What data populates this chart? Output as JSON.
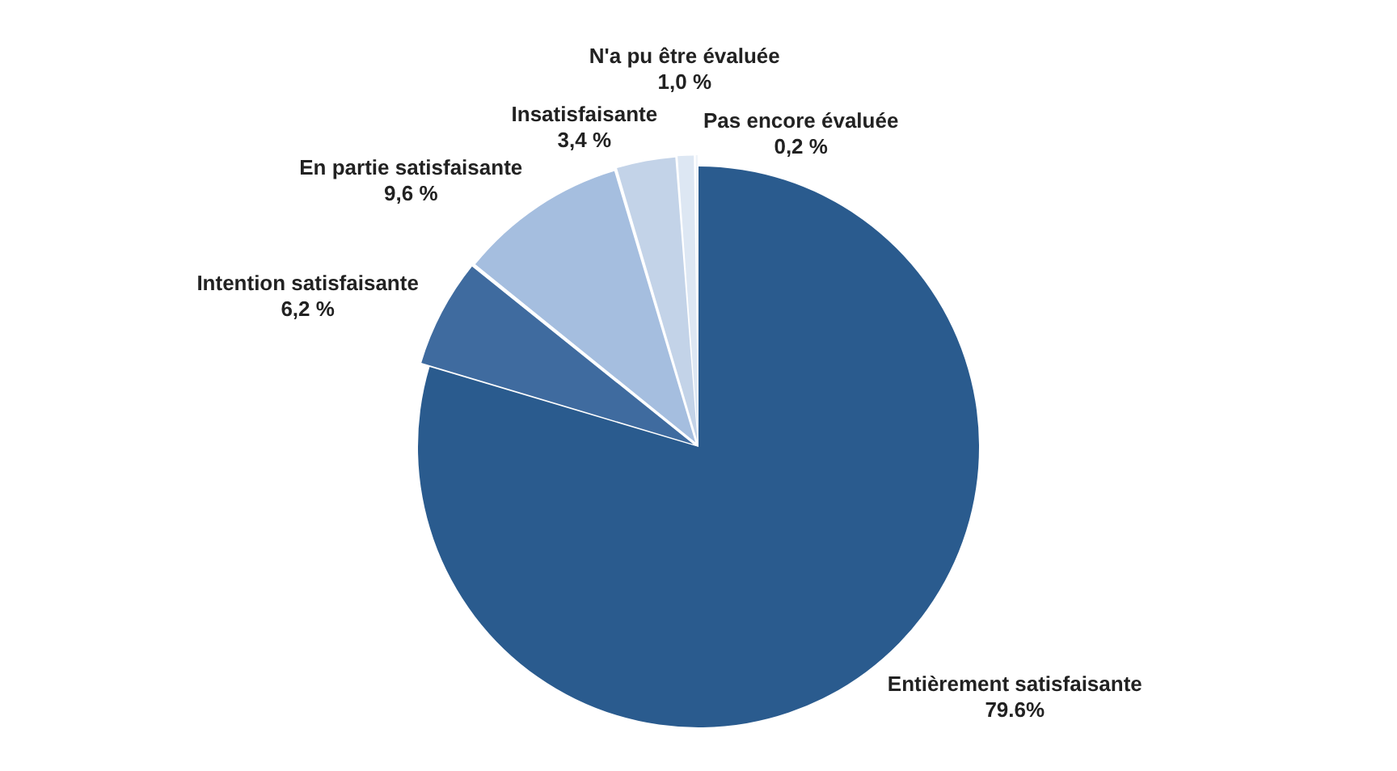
{
  "chart_data": {
    "type": "pie",
    "categories": [
      "Entièrement satisfaisante",
      "Intention satisfaisante",
      "En partie satisfaisante",
      "Insatisfaisante",
      "N'a pu être évaluée",
      "Pas encore évaluée"
    ],
    "values": [
      79.6,
      6.2,
      9.6,
      3.4,
      1.0,
      0.2
    ],
    "value_labels": [
      "79.6%",
      "6,2 %",
      "9,6 %",
      "3,4 %",
      "1,0 %",
      "0,2 %"
    ],
    "colors": [
      "#2a5b8e",
      "#3f6b9f",
      "#a5bedf",
      "#c3d3e8",
      "#dde7f3",
      "#eef3f9"
    ],
    "legend": false
  }
}
